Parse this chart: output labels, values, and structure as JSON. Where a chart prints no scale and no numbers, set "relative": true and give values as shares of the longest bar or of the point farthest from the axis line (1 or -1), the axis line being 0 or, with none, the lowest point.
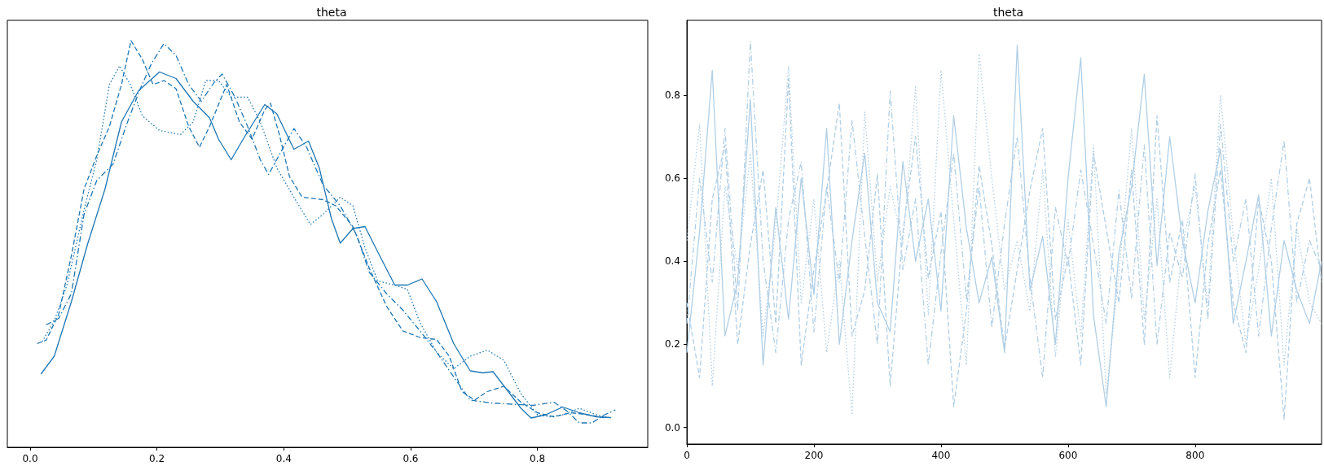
{
  "chart_data": [
    {
      "type": "line",
      "title": "theta",
      "relative": true,
      "tick_labels": "x",
      "grid": false,
      "xlim": [
        -0.036,
        0.974
      ],
      "xticks": [
        {
          "value": 0,
          "label": "0.0"
        },
        {
          "value": 0.2,
          "label": "0.2"
        },
        {
          "value": 0.4,
          "label": "0.4"
        },
        {
          "value": 0.6,
          "label": "0.6"
        },
        {
          "value": 0.8,
          "label": "0.8"
        }
      ],
      "series": [
        {
          "color": "#1f77b4",
          "line_style": "solid",
          "x": [
            0.017,
            0.038,
            0.065,
            0.091,
            0.118,
            0.144,
            0.171,
            0.204,
            0.23,
            0.257,
            0.283,
            0.297,
            0.317,
            0.336,
            0.37,
            0.389,
            0.416,
            0.439,
            0.456,
            0.475,
            0.489,
            0.509,
            0.528,
            0.548,
            0.575,
            0.595,
            0.618,
            0.641,
            0.668,
            0.694,
            0.714,
            0.73,
            0.754,
            0.774,
            0.79,
            0.813,
            0.84,
            0.866,
            0.893,
            0.916
          ],
          "values": [
            0.18,
            0.224,
            0.358,
            0.502,
            0.635,
            0.8,
            0.877,
            0.923,
            0.907,
            0.851,
            0.81,
            0.758,
            0.707,
            0.758,
            0.843,
            0.82,
            0.733,
            0.753,
            0.687,
            0.563,
            0.502,
            0.538,
            0.543,
            0.481,
            0.399,
            0.399,
            0.414,
            0.358,
            0.255,
            0.188,
            0.183,
            0.186,
            0.137,
            0.096,
            0.072,
            0.08,
            0.099,
            0.085,
            0.075,
            0.073
          ]
        },
        {
          "color": "#1f77b4",
          "line_style": "dashed",
          "x": [
            0.011,
            0.025,
            0.045,
            0.065,
            0.085,
            0.105,
            0.125,
            0.144,
            0.159,
            0.177,
            0.194,
            0.211,
            0.23,
            0.25,
            0.267,
            0.283,
            0.31,
            0.33,
            0.35,
            0.37,
            0.379,
            0.393,
            0.409,
            0.429,
            0.462,
            0.482,
            0.509,
            0.535,
            0.562,
            0.588,
            0.615,
            0.641,
            0.661,
            0.681,
            0.701,
            0.721,
            0.747,
            0.774,
            0.8,
            0.826,
            0.853,
            0.879,
            0.906
          ],
          "values": [
            0.255,
            0.263,
            0.327,
            0.471,
            0.635,
            0.717,
            0.789,
            0.892,
            1.0,
            0.954,
            0.892,
            0.902,
            0.882,
            0.789,
            0.738,
            0.789,
            0.892,
            0.8,
            0.758,
            0.83,
            0.846,
            0.769,
            0.666,
            0.615,
            0.609,
            0.594,
            0.543,
            0.44,
            0.347,
            0.286,
            0.27,
            0.265,
            0.224,
            0.137,
            0.116,
            0.137,
            0.15,
            0.111,
            0.085,
            0.075,
            0.085,
            0.08,
            0.073
          ]
        },
        {
          "color": "#1f77b4",
          "line_style": "dotted",
          "x": [
            0.019,
            0.038,
            0.058,
            0.085,
            0.105,
            0.125,
            0.141,
            0.158,
            0.177,
            0.204,
            0.237,
            0.257,
            0.277,
            0.297,
            0.317,
            0.343,
            0.363,
            0.389,
            0.416,
            0.442,
            0.462,
            0.489,
            0.509,
            0.528,
            0.548,
            0.575,
            0.595,
            0.615,
            0.641,
            0.668,
            0.694,
            0.721,
            0.747,
            0.774,
            0.8,
            0.82,
            0.84,
            0.866,
            0.893,
            0.913
          ],
          "values": [
            0.26,
            0.311,
            0.399,
            0.584,
            0.707,
            0.892,
            0.938,
            0.892,
            0.815,
            0.779,
            0.769,
            0.8,
            0.902,
            0.902,
            0.861,
            0.861,
            0.8,
            0.687,
            0.615,
            0.548,
            0.573,
            0.615,
            0.594,
            0.491,
            0.409,
            0.399,
            0.388,
            0.306,
            0.234,
            0.193,
            0.224,
            0.239,
            0.214,
            0.132,
            0.08,
            0.075,
            0.08,
            0.096,
            0.08,
            0.073
          ]
        },
        {
          "color": "#1f77b4",
          "line_style": "dashdot",
          "x": [
            0.025,
            0.045,
            0.065,
            0.085,
            0.105,
            0.131,
            0.151,
            0.171,
            0.191,
            0.211,
            0.23,
            0.25,
            0.27,
            0.29,
            0.303,
            0.323,
            0.343,
            0.363,
            0.376,
            0.396,
            0.416,
            0.436,
            0.462,
            0.489,
            0.515,
            0.535,
            0.562,
            0.588,
            0.615,
            0.641,
            0.668,
            0.694,
            0.727,
            0.76,
            0.793,
            0.826,
            0.846,
            0.866,
            0.886,
            0.906,
            0.923
          ],
          "values": [
            0.301,
            0.317,
            0.378,
            0.573,
            0.656,
            0.697,
            0.789,
            0.872,
            0.943,
            0.993,
            0.964,
            0.892,
            0.851,
            0.897,
            0.918,
            0.861,
            0.789,
            0.707,
            0.671,
            0.728,
            0.784,
            0.738,
            0.645,
            0.594,
            0.522,
            0.43,
            0.378,
            0.337,
            0.286,
            0.234,
            0.173,
            0.116,
            0.109,
            0.106,
            0.103,
            0.111,
            0.09,
            0.06,
            0.06,
            0.08,
            0.092
          ]
        }
      ]
    },
    {
      "type": "line",
      "title": "theta",
      "grid": false,
      "xlim": [
        0,
        999
      ],
      "xticks": [
        0,
        200,
        400,
        600,
        800
      ],
      "ylim": [
        -0.04,
        0.98
      ],
      "yticks": [
        {
          "value": 0,
          "label": "0.0"
        },
        {
          "value": 0.2,
          "label": "0.2"
        },
        {
          "value": 0.4,
          "label": "0.4"
        },
        {
          "value": 0.6,
          "label": "0.6"
        },
        {
          "value": 0.8,
          "label": "0.8"
        }
      ],
      "x": [
        0,
        20,
        40,
        60,
        80,
        100,
        120,
        140,
        160,
        180,
        200,
        220,
        240,
        260,
        280,
        300,
        320,
        340,
        360,
        380,
        400,
        420,
        440,
        460,
        480,
        500,
        520,
        540,
        560,
        580,
        600,
        620,
        640,
        660,
        680,
        700,
        720,
        740,
        760,
        780,
        800,
        820,
        840,
        860,
        880,
        900,
        920,
        940,
        960,
        980,
        999
      ],
      "series": [
        {
          "color": "#b1cfe5",
          "line_style": "solid",
          "values": [
            0.18,
            0.47,
            0.86,
            0.22,
            0.35,
            0.79,
            0.15,
            0.53,
            0.26,
            0.6,
            0.32,
            0.72,
            0.2,
            0.45,
            0.66,
            0.3,
            0.23,
            0.64,
            0.4,
            0.55,
            0.28,
            0.75,
            0.48,
            0.3,
            0.41,
            0.18,
            0.92,
            0.33,
            0.46,
            0.2,
            0.6,
            0.89,
            0.27,
            0.05,
            0.42,
            0.58,
            0.85,
            0.39,
            0.7,
            0.45,
            0.3,
            0.52,
            0.67,
            0.25,
            0.4,
            0.56,
            0.22,
            0.45,
            0.33,
            0.25,
            0.4
          ]
        },
        {
          "color": "#b1cfe5",
          "line_style": "dashed",
          "values": [
            0.3,
            0.12,
            0.55,
            0.68,
            0.2,
            0.44,
            0.62,
            0.25,
            0.84,
            0.15,
            0.38,
            0.57,
            0.78,
            0.22,
            0.33,
            0.61,
            0.1,
            0.47,
            0.7,
            0.36,
            0.52,
            0.05,
            0.28,
            0.63,
            0.44,
            0.19,
            0.38,
            0.57,
            0.72,
            0.26,
            0.41,
            0.15,
            0.66,
            0.48,
            0.3,
            0.62,
            0.2,
            0.75,
            0.35,
            0.5,
            0.12,
            0.44,
            0.62,
            0.3,
            0.18,
            0.55,
            0.4,
            0.02,
            0.49,
            0.6,
            0.35
          ]
        },
        {
          "color": "#b1cfe5",
          "line_style": "dotted",
          "values": [
            0.45,
            0.73,
            0.1,
            0.58,
            0.38,
            0.66,
            0.22,
            0.48,
            0.87,
            0.3,
            0.55,
            0.18,
            0.4,
            0.03,
            0.76,
            0.35,
            0.58,
            0.44,
            0.82,
            0.27,
            0.86,
            0.5,
            0.15,
            0.9,
            0.6,
            0.33,
            0.45,
            0.28,
            0.62,
            0.17,
            0.5,
            0.22,
            0.68,
            0.08,
            0.37,
            0.72,
            0.26,
            0.55,
            0.12,
            0.44,
            0.58,
            0.29,
            0.8,
            0.46,
            0.2,
            0.38,
            0.6,
            0.15,
            0.48,
            0.3,
            0.25
          ]
        },
        {
          "color": "#b1cfe5",
          "line_style": "dashdot",
          "values": [
            0.25,
            0.6,
            0.35,
            0.72,
            0.28,
            0.93,
            0.4,
            0.18,
            0.5,
            0.64,
            0.23,
            0.58,
            0.35,
            0.74,
            0.46,
            0.2,
            0.81,
            0.38,
            0.55,
            0.15,
            0.42,
            0.66,
            0.31,
            0.58,
            0.24,
            0.49,
            0.7,
            0.36,
            0.12,
            0.53,
            0.39,
            0.62,
            0.44,
            0.25,
            0.57,
            0.31,
            0.68,
            0.2,
            0.47,
            0.36,
            0.61,
            0.26,
            0.73,
            0.4,
            0.55,
            0.22,
            0.48,
            0.69,
            0.3,
            0.45,
            0.38
          ]
        }
      ]
    }
  ]
}
